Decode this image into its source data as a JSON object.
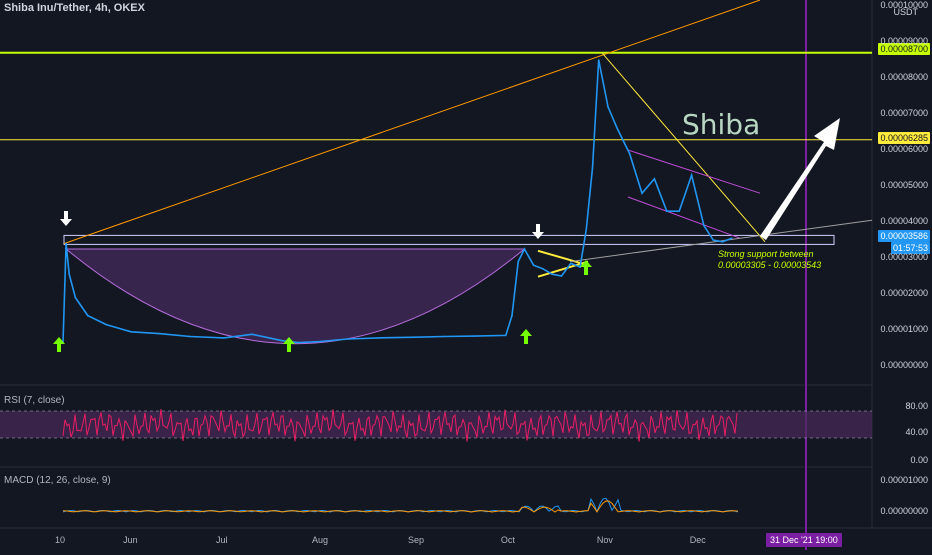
{
  "header": {
    "symbol_line": "Shiba Inu/Tether, 4h, OKEX",
    "currency": "USDT"
  },
  "annotations": {
    "watermark": "Shiba",
    "support_line1": "Strong support between",
    "support_line2": "0.00003305 - 0.00003543"
  },
  "colors": {
    "background": "#131722",
    "price_line": "#2196f3",
    "key_level": "#c6ff00",
    "yellow_level": "#ffeb3b",
    "trend_orange": "#ff9800",
    "cup_fill": "#7e3fa0",
    "rsi_line": "#e91e63",
    "rsi_band": "#4a2a5a",
    "vertical_marker": "#7b1fa2",
    "arrow_green": "#76ff03"
  },
  "price_axis": {
    "ticks": [
      "0.00010000",
      "0.00009000",
      "0.00008000",
      "0.00007000",
      "0.00006000",
      "0.00005000",
      "0.00004000",
      "0.00003000",
      "0.00002000",
      "0.00001000",
      "0.00000000"
    ],
    "tag_upper": "0.00008700",
    "tag_mid": "0.00006285",
    "tag_price": "0.00003586",
    "tag_timer": "01:57:53"
  },
  "time_axis": {
    "labels": [
      "10",
      "Jun",
      "Jul",
      "Aug",
      "Sep",
      "Oct",
      "Nov",
      "Dec"
    ],
    "marker_label": "31 Dec '21   19:00"
  },
  "rsi": {
    "label": "RSI (7, close)",
    "ticks": [
      "80.00",
      "40.00",
      "0.00"
    ],
    "upper_band": 70,
    "lower_band": 30
  },
  "macd": {
    "label": "MACD (12, 26, close, 9)",
    "ticks": [
      "0.00001000",
      "0.00000000"
    ]
  },
  "chart_data": {
    "type": "line",
    "title": "Shiba Inu/Tether, 4h, OKEX",
    "ylabel": "USDT",
    "ylim": [
      0,
      0.0001
    ],
    "horizontal_levels": [
      8.7e-05,
      6.285e-05,
      3.586e-05
    ],
    "support_range": [
      3.305e-05,
      3.543e-05
    ],
    "series": [
      {
        "x": [
          "2021-05-10",
          "2021-05-11",
          "2021-05-12",
          "2021-05-14",
          "2021-05-18",
          "2021-05-24",
          "2021-06-01",
          "2021-06-10",
          "2021-06-20",
          "2021-07-01",
          "2021-07-10",
          "2021-07-20",
          "2021-07-25",
          "2021-08-01",
          "2021-08-10",
          "2021-08-20",
          "2021-09-01",
          "2021-09-10",
          "2021-09-20",
          "2021-09-30",
          "2021-10-02",
          "2021-10-04",
          "2021-10-06",
          "2021-10-09",
          "2021-10-12",
          "2021-10-15",
          "2021-10-18",
          "2021-10-21",
          "2021-10-24",
          "2021-10-26",
          "2021-10-28",
          "2021-10-30",
          "2021-11-02",
          "2021-11-05",
          "2021-11-09",
          "2021-11-13",
          "2021-11-17",
          "2021-11-21",
          "2021-11-25",
          "2021-11-29",
          "2021-12-03",
          "2021-12-06",
          "2021-12-09",
          "2021-12-12"
        ],
        "values": [
          6.5e-06,
          3.4e-05,
          2.55e-05,
          1.9e-05,
          1.4e-05,
          1.15e-05,
          9.5e-06,
          9e-06,
          8.2e-06,
          7.8e-06,
          8.8e-06,
          7e-06,
          6.5e-06,
          6.8e-06,
          7.5e-06,
          7.8e-06,
          8e-06,
          8.2e-06,
          8.3e-06,
          8.5e-06,
          1.4e-05,
          2.9e-05,
          3.25e-05,
          2.8e-05,
          2.7e-05,
          2.55e-05,
          2.5e-05,
          2.85e-05,
          2.75e-05,
          3.8e-05,
          5.5e-05,
          8.5e-05,
          7.2e-05,
          6.6e-05,
          5.9e-05,
          4.8e-05,
          5.2e-05,
          4.3e-05,
          4.3e-05,
          5.3e-05,
          3.9e-05,
          3.5e-05,
          3.45e-05,
          3.55e-05
        ]
      }
    ]
  }
}
